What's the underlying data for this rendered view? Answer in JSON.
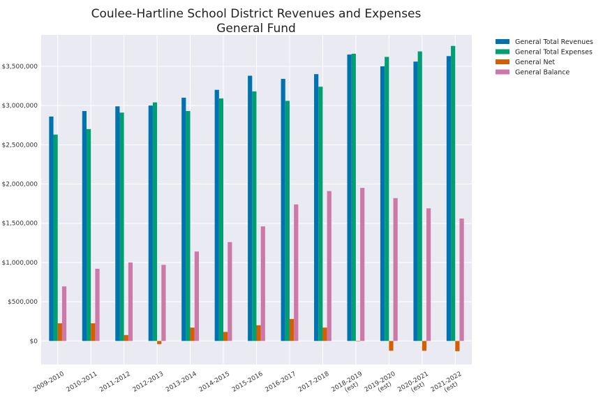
{
  "chart_data": {
    "type": "bar",
    "title": "Coulee-Hartline School District Revenues and Expenses",
    "subtitle": "General Fund",
    "xlabel": "",
    "ylabel": "",
    "ylim": [
      -300000,
      3900000
    ],
    "yticks": [
      0,
      500000,
      1000000,
      1500000,
      2000000,
      2500000,
      3000000,
      3500000
    ],
    "ytick_labels": [
      "$0",
      "$500,000",
      "$1,000,000",
      "$1,500,000",
      "$2,000,000",
      "$2,500,000",
      "$3,000,000",
      "$3,500,000"
    ],
    "categories": [
      [
        "2009-2010"
      ],
      [
        "2010-2011"
      ],
      [
        "2011-2012"
      ],
      [
        "2012-2013"
      ],
      [
        "2013-2014"
      ],
      [
        "2014-2015"
      ],
      [
        "2015-2016"
      ],
      [
        "2016-2017"
      ],
      [
        "2017-2018"
      ],
      [
        "2018-2019",
        "(est)"
      ],
      [
        "2019-2020",
        "(est)"
      ],
      [
        "2020-2021",
        "(est)"
      ],
      [
        "2021-2022",
        "(est)"
      ]
    ],
    "grid": true,
    "legend_position": "outside-top-right",
    "series": [
      {
        "name": "General Total Revenues",
        "color": "#0072b2",
        "values": [
          2860000,
          2930000,
          2990000,
          3000000,
          3100000,
          3200000,
          3380000,
          3340000,
          3400000,
          3650000,
          3500000,
          3560000,
          3630000
        ]
      },
      {
        "name": "General Total Expenses",
        "color": "#009e73",
        "values": [
          2630000,
          2700000,
          2910000,
          3040000,
          2930000,
          3090000,
          3180000,
          3060000,
          3240000,
          3660000,
          3620000,
          3690000,
          3760000
        ]
      },
      {
        "name": "General Net",
        "color": "#d55e00",
        "values": [
          225000,
          225000,
          75000,
          -40000,
          170000,
          115000,
          200000,
          280000,
          170000,
          -5000,
          -125000,
          -125000,
          -130000
        ]
      },
      {
        "name": "General Balance",
        "color": "#cc79a7",
        "values": [
          695000,
          920000,
          1000000,
          970000,
          1140000,
          1260000,
          1460000,
          1740000,
          1910000,
          1950000,
          1820000,
          1690000,
          1560000
        ]
      }
    ]
  }
}
